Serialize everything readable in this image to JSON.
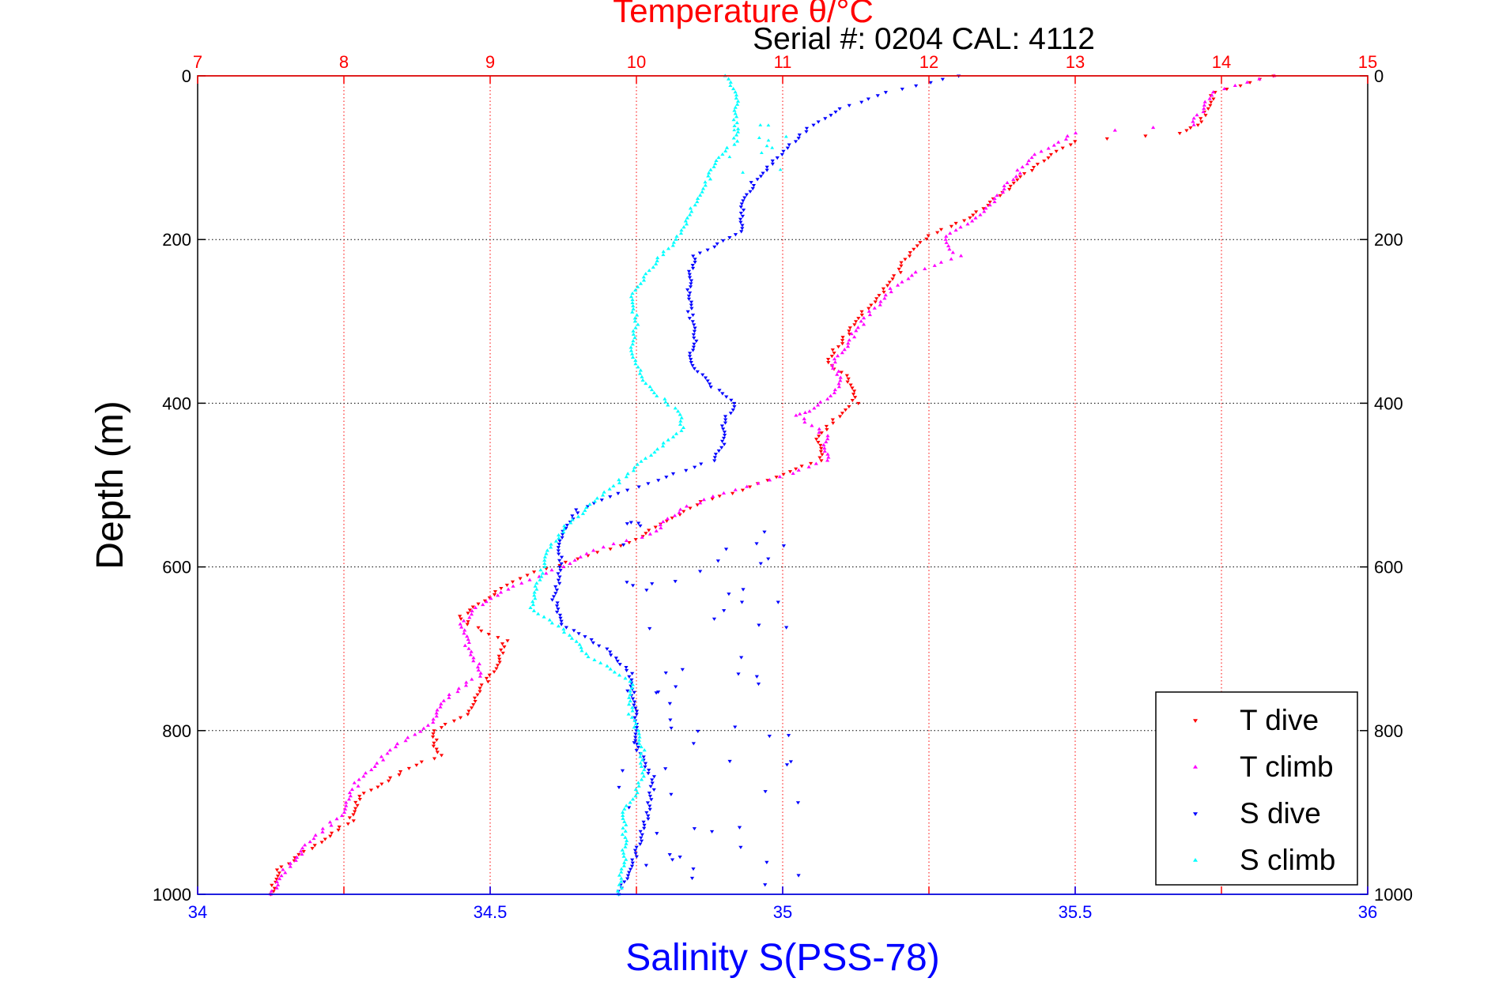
{
  "chart_data": {
    "type": "scatter",
    "title": "Temperature θ/°C",
    "subtitle": "Serial #: 0204  CAL: 4112",
    "ylabel": "Depth (m)",
    "xlabel_bottom": "Salinity S(PSS-78)",
    "y_axis": {
      "range": [
        0,
        1000
      ],
      "reversed": true,
      "ticks": [
        "0",
        "200",
        "400",
        "600",
        "800",
        "1000"
      ]
    },
    "x_top": {
      "label": "Temperature θ/°C",
      "range": [
        7,
        15
      ],
      "ticks": [
        "7",
        "8",
        "9",
        "10",
        "11",
        "12",
        "13",
        "14",
        "15"
      ]
    },
    "x_bottom": {
      "label": "Salinity S(PSS-78)",
      "range": [
        34,
        36
      ],
      "ticks": [
        "34",
        "34.5",
        "35",
        "35.5",
        "36"
      ]
    },
    "grid": {
      "horizontal": "dotted",
      "vertical": "dotted-red"
    },
    "legend_position": "bottom-right",
    "colors": {
      "t_dive": "#ff0000",
      "t_climb": "#ff00ff",
      "s_dive": "#0000ff",
      "s_climb": "#00ffff",
      "temp_axis": "#ff0000",
      "sal_axis": "#0000ff"
    },
    "series": [
      {
        "name": "T dive",
        "axis": "temperature",
        "color": "#ff0000",
        "marker": "triangle-down",
        "points": [
          [
            14.35,
            0
          ],
          [
            13.95,
            20
          ],
          [
            13.85,
            60
          ],
          [
            13.7,
            70
          ],
          [
            13.0,
            80
          ],
          [
            12.8,
            100
          ],
          [
            12.45,
            150
          ],
          [
            12.3,
            170
          ],
          [
            12.2,
            180
          ],
          [
            12.0,
            195
          ],
          [
            11.85,
            220
          ],
          [
            11.8,
            240
          ],
          [
            11.7,
            260
          ],
          [
            11.5,
            300
          ],
          [
            11.3,
            350
          ],
          [
            11.45,
            370
          ],
          [
            11.5,
            400
          ],
          [
            11.35,
            420
          ],
          [
            11.25,
            440
          ],
          [
            11.25,
            470
          ],
          [
            11.1,
            480
          ],
          [
            10.95,
            490
          ],
          [
            10.65,
            510
          ],
          [
            10.45,
            520
          ],
          [
            10.25,
            540
          ],
          [
            9.95,
            570
          ],
          [
            9.6,
            590
          ],
          [
            9.25,
            610
          ],
          [
            9.05,
            630
          ],
          [
            8.8,
            660
          ],
          [
            8.85,
            670
          ],
          [
            9.1,
            690
          ],
          [
            9.05,
            720
          ],
          [
            8.9,
            760
          ],
          [
            8.85,
            780
          ],
          [
            8.6,
            800
          ],
          [
            8.65,
            830
          ],
          [
            8.4,
            850
          ],
          [
            8.1,
            880
          ],
          [
            8.05,
            910
          ],
          [
            7.8,
            940
          ],
          [
            7.55,
            970
          ],
          [
            7.5,
            1000
          ]
        ]
      },
      {
        "name": "T climb",
        "axis": "temperature",
        "color": "#ff00ff",
        "marker": "triangle-up",
        "points": [
          [
            14.35,
            0
          ],
          [
            13.95,
            20
          ],
          [
            13.8,
            60
          ],
          [
            13.0,
            70
          ],
          [
            12.7,
            100
          ],
          [
            12.45,
            150
          ],
          [
            12.35,
            170
          ],
          [
            12.1,
            200
          ],
          [
            12.2,
            220
          ],
          [
            11.9,
            240
          ],
          [
            11.75,
            260
          ],
          [
            11.55,
            300
          ],
          [
            11.35,
            350
          ],
          [
            11.4,
            380
          ],
          [
            11.2,
            410
          ],
          [
            11.1,
            415
          ],
          [
            11.3,
            440
          ],
          [
            11.3,
            470
          ],
          [
            11.0,
            490
          ],
          [
            10.6,
            510
          ],
          [
            10.3,
            530
          ],
          [
            10.1,
            560
          ],
          [
            9.7,
            580
          ],
          [
            9.5,
            600
          ],
          [
            9.2,
            620
          ],
          [
            8.9,
            650
          ],
          [
            8.8,
            670
          ],
          [
            8.85,
            700
          ],
          [
            8.95,
            730
          ],
          [
            8.7,
            760
          ],
          [
            8.6,
            790
          ],
          [
            8.35,
            820
          ],
          [
            8.1,
            860
          ],
          [
            8.0,
            900
          ],
          [
            7.75,
            940
          ],
          [
            7.6,
            970
          ],
          [
            7.5,
            1000
          ]
        ]
      },
      {
        "name": "S dive",
        "axis": "salinity",
        "color": "#0000ff",
        "marker": "triangle-down",
        "points": [
          [
            35.3,
            0
          ],
          [
            35.18,
            20
          ],
          [
            35.1,
            40
          ],
          [
            35.05,
            60
          ],
          [
            34.99,
            100
          ],
          [
            34.95,
            130
          ],
          [
            34.93,
            160
          ],
          [
            34.93,
            190
          ],
          [
            34.85,
            220
          ],
          [
            34.84,
            250
          ],
          [
            34.84,
            280
          ],
          [
            34.85,
            320
          ],
          [
            34.84,
            350
          ],
          [
            34.88,
            380
          ],
          [
            34.92,
            400
          ],
          [
            34.9,
            420
          ],
          [
            34.9,
            450
          ],
          [
            34.88,
            470
          ],
          [
            34.8,
            490
          ],
          [
            34.72,
            510
          ],
          [
            34.65,
            530
          ],
          [
            34.62,
            560
          ],
          [
            34.62,
            600
          ],
          [
            34.61,
            640
          ],
          [
            34.62,
            670
          ],
          [
            34.7,
            700
          ],
          [
            34.74,
            730
          ],
          [
            34.75,
            780
          ],
          [
            34.75,
            820
          ],
          [
            34.78,
            860
          ],
          [
            34.77,
            900
          ],
          [
            34.75,
            950
          ],
          [
            34.72,
            1000
          ]
        ]
      },
      {
        "name": "S climb",
        "axis": "salinity",
        "color": "#00ffff",
        "marker": "triangle-up",
        "points": [
          [
            34.9,
            0
          ],
          [
            34.92,
            20
          ],
          [
            34.92,
            50
          ],
          [
            34.92,
            80
          ],
          [
            34.89,
            100
          ],
          [
            34.87,
            130
          ],
          [
            34.84,
            170
          ],
          [
            34.82,
            200
          ],
          [
            34.78,
            230
          ],
          [
            34.74,
            270
          ],
          [
            34.75,
            300
          ],
          [
            34.74,
            340
          ],
          [
            34.77,
            380
          ],
          [
            34.82,
            410
          ],
          [
            34.83,
            430
          ],
          [
            34.78,
            460
          ],
          [
            34.73,
            490
          ],
          [
            34.68,
            520
          ],
          [
            34.63,
            550
          ],
          [
            34.6,
            580
          ],
          [
            34.58,
            620
          ],
          [
            34.57,
            650
          ],
          [
            34.63,
            680
          ],
          [
            34.67,
            710
          ],
          [
            34.74,
            740
          ],
          [
            34.74,
            780
          ],
          [
            34.76,
            820
          ],
          [
            34.76,
            860
          ],
          [
            34.73,
            900
          ],
          [
            34.73,
            950
          ],
          [
            34.72,
            1000
          ]
        ]
      }
    ]
  },
  "legend": {
    "items": [
      {
        "label": "T dive",
        "color": "#ff0000",
        "marker": "triangle-down"
      },
      {
        "label": "T climb",
        "color": "#ff00ff",
        "marker": "triangle-up"
      },
      {
        "label": "S dive",
        "color": "#0000ff",
        "marker": "triangle-down"
      },
      {
        "label": "S climb",
        "color": "#00ffff",
        "marker": "triangle-up"
      }
    ]
  }
}
